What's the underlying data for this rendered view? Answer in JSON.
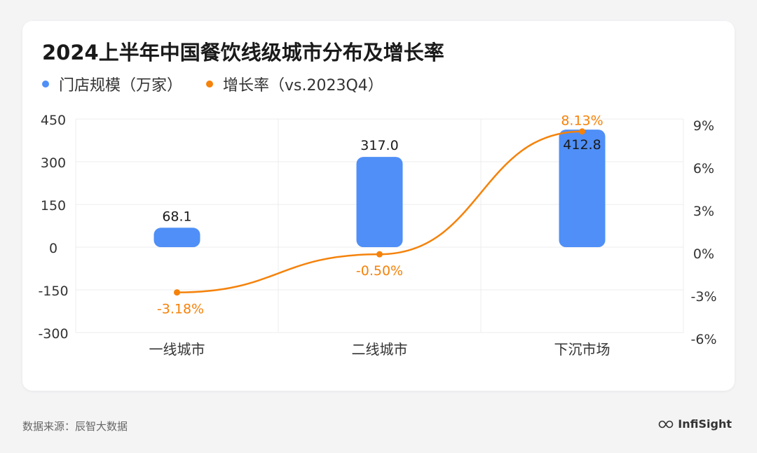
{
  "source": "数据来源：辰智大数据",
  "brand": "InfiSight",
  "colors": {
    "bar": "#4f8ff7",
    "line": "#f5820a",
    "grid": "#ececec",
    "axis_text": "#333333"
  },
  "chart_data": {
    "type": "bar",
    "title": "2024上半年中国餐饮线级城市分布及增长率",
    "legend_placement": "top-left",
    "grid": true,
    "categories": [
      "一线城市",
      "二线城市",
      "下沉市场"
    ],
    "series": [
      {
        "name": "门店规模（万家）",
        "type": "bar",
        "axis": "left",
        "values": [
          68.1,
          317.0,
          412.8
        ],
        "labels": [
          "68.1",
          "317.0",
          "412.8"
        ]
      },
      {
        "name": "增长率（vs.2023Q4）",
        "type": "line",
        "axis": "right",
        "values": [
          -3.18,
          -0.5,
          8.13
        ],
        "labels": [
          "-3.18%",
          "-0.50%",
          "8.13%"
        ]
      }
    ],
    "y_left": {
      "ticks": [
        450,
        300,
        150,
        0,
        -150,
        -300
      ],
      "tick_labels": [
        "450",
        "300",
        "150",
        "0",
        "-150",
        "-300"
      ],
      "ylim": [
        -300,
        450
      ]
    },
    "y_right": {
      "ticks": [
        9,
        6,
        3,
        0,
        -3,
        -6
      ],
      "tick_labels": [
        "9%",
        "6%",
        "3%",
        "0%",
        "-3%",
        "-6%"
      ],
      "ylim": [
        -6,
        9
      ]
    }
  }
}
